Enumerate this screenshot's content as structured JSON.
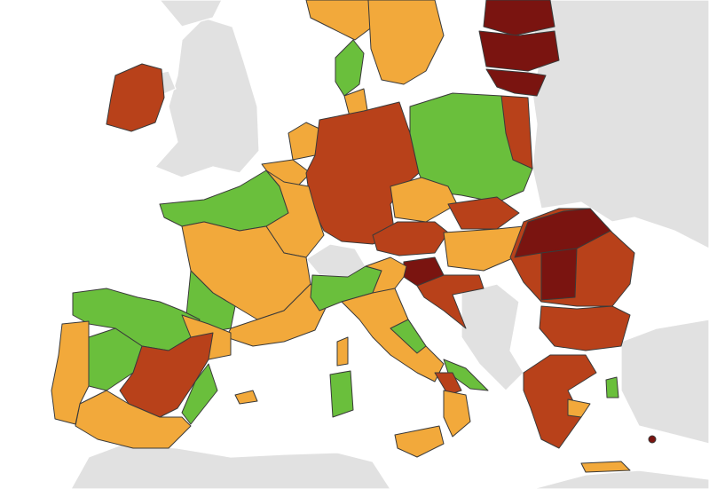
{
  "map": {
    "sea_color": "#ffffff",
    "non_eu_color": "#e1e1e1",
    "categories": {
      "green": "#6abf3c",
      "orange": "#f2a93b",
      "red": "#b8411a",
      "dark_red": "#7a1410"
    }
  }
}
